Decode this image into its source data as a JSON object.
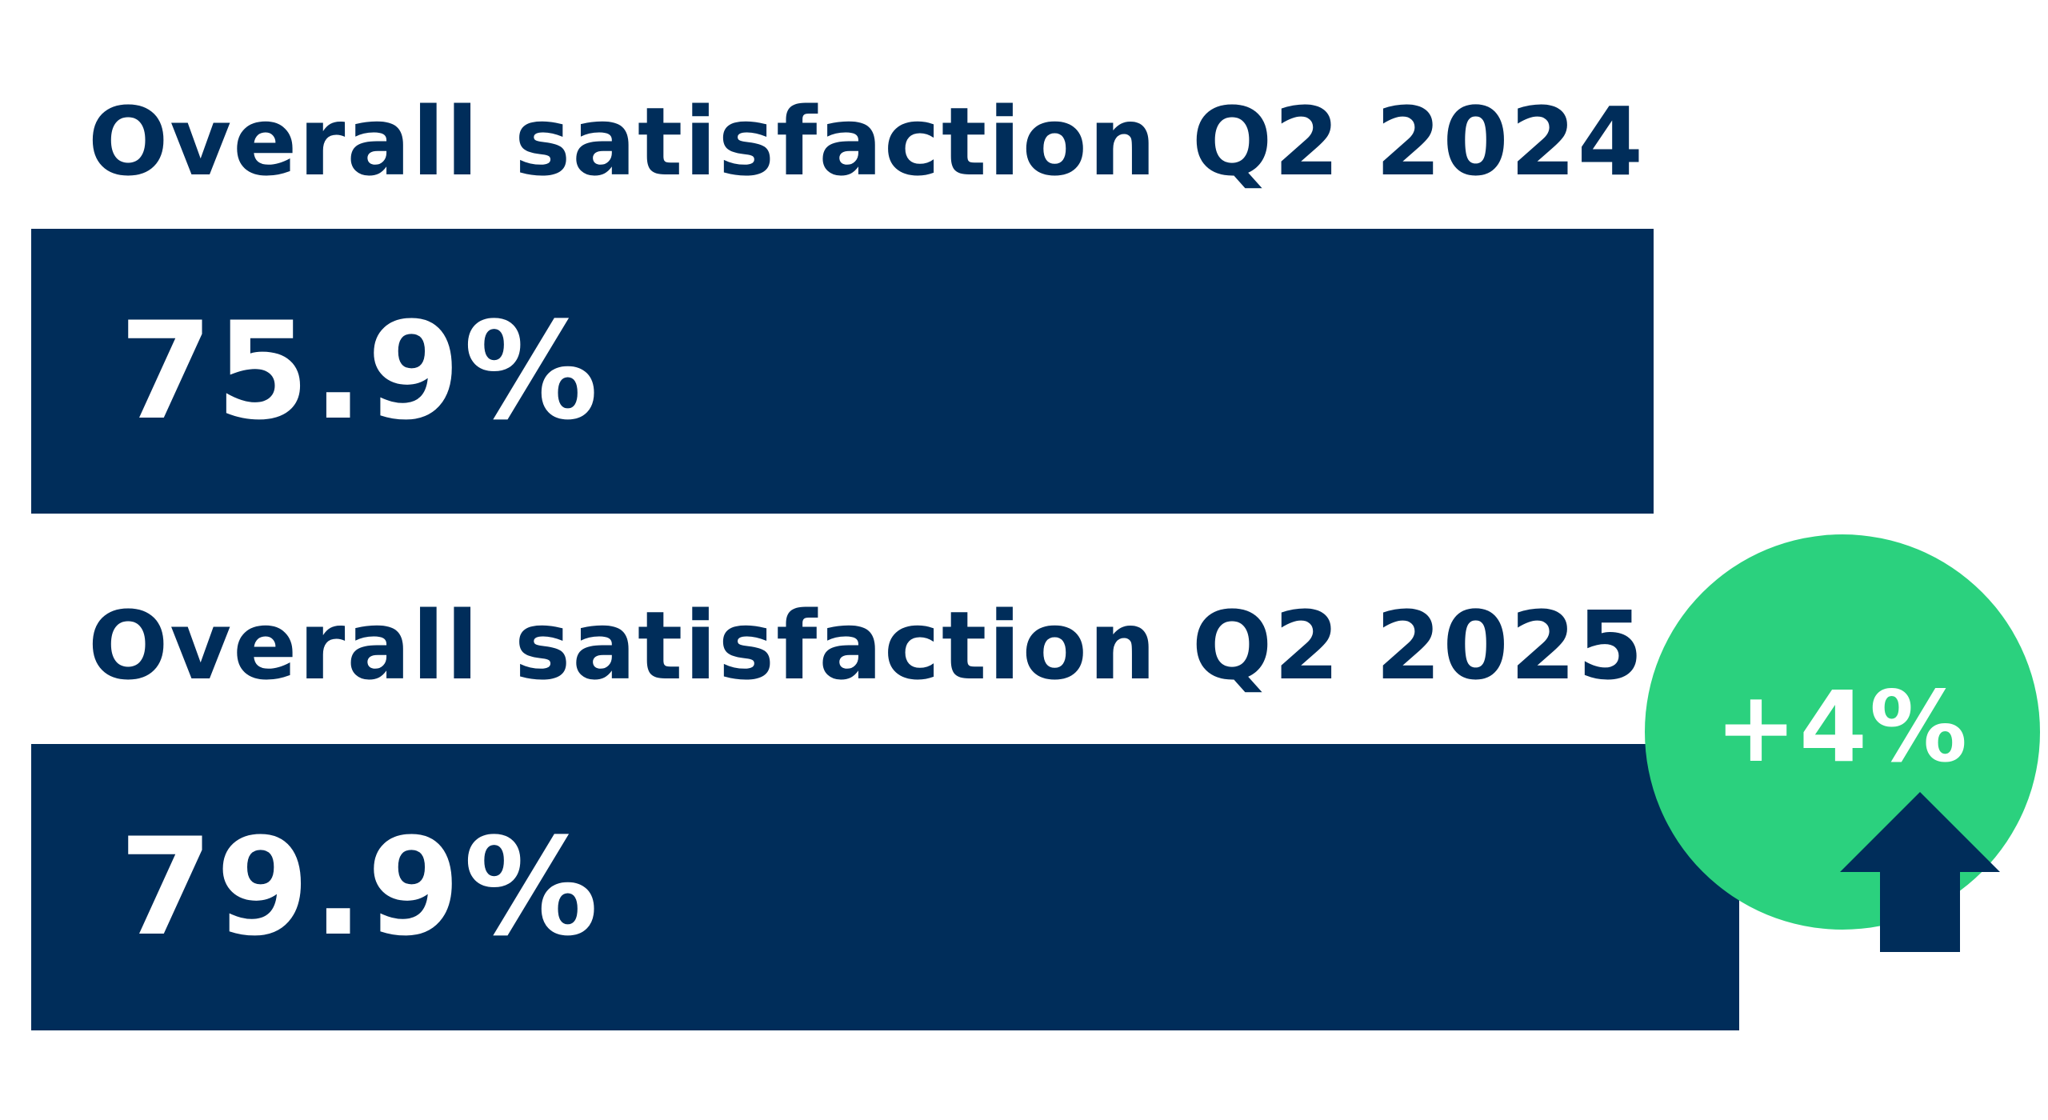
{
  "colors": {
    "navy": "#002d5a",
    "green": "#2bd17e",
    "text_on_dark": "#ffffff"
  },
  "badge": {
    "change_label": "+4%",
    "arrow_icon": "arrow-up-icon"
  },
  "chart_data": {
    "type": "bar",
    "orientation": "horizontal",
    "categories": [
      "Overall satisfaction Q2 2024",
      "Overall satisfaction Q2 2025"
    ],
    "values": [
      75.9,
      79.9
    ],
    "value_labels": [
      "75.9%",
      "79.9%"
    ],
    "unit": "%",
    "xlim": [
      0,
      100
    ],
    "grid": false,
    "legend": "none"
  }
}
